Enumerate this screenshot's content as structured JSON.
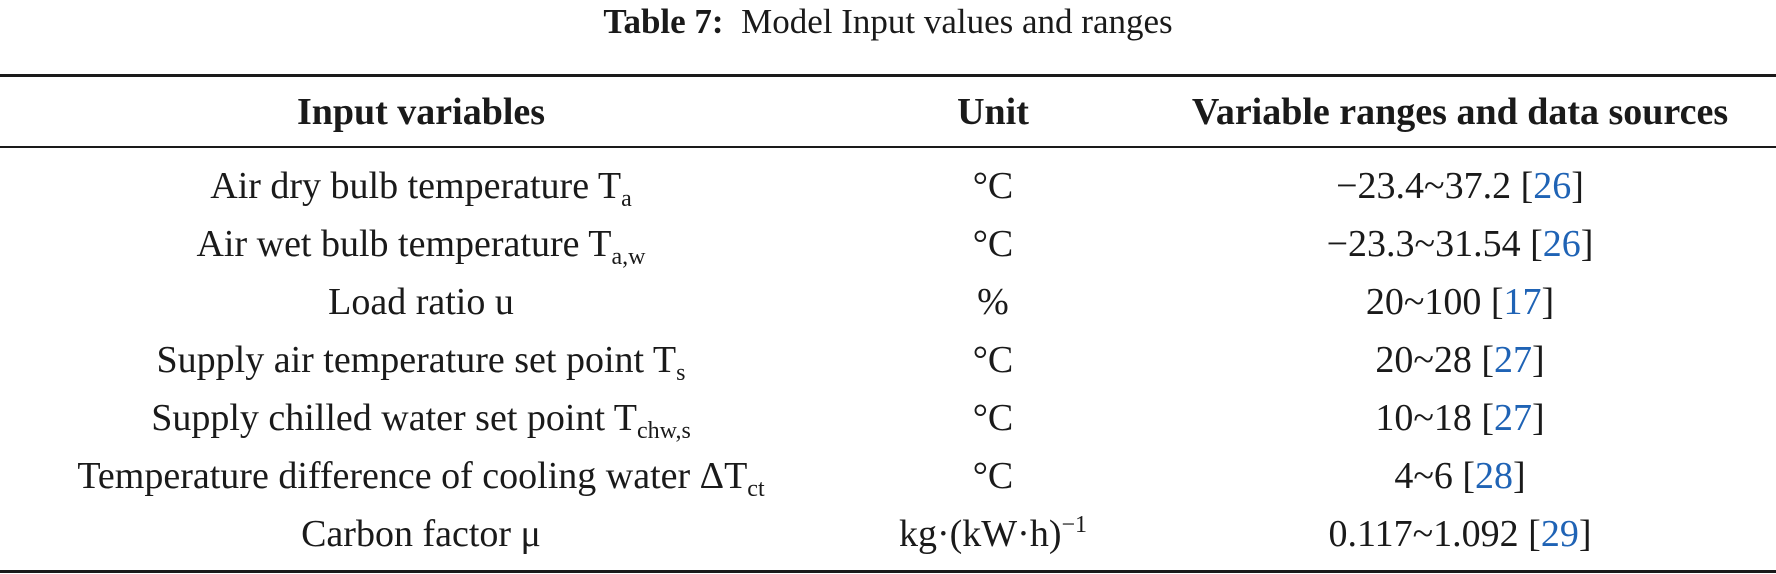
{
  "caption": {
    "label": "Table 7:",
    "text": "Model Input values and ranges"
  },
  "columns": [
    "Input variables",
    "Unit",
    "Variable ranges and data sources"
  ],
  "rows": [
    {
      "variable": "Air dry bulb temperature T",
      "sub": "a",
      "unit": "°C",
      "unit_sup": "",
      "range": "−23.4~37.2",
      "ref": "26"
    },
    {
      "variable": "Air wet bulb temperature T",
      "sub": "a,w",
      "unit": "°C",
      "unit_sup": "",
      "range": "−23.3~31.54",
      "ref": "26"
    },
    {
      "variable": "Load ratio u",
      "sub": "",
      "unit": "%",
      "unit_sup": "",
      "range": "20~100",
      "ref": "17"
    },
    {
      "variable": "Supply air temperature set point T",
      "sub": "s",
      "unit": "°C",
      "unit_sup": "",
      "range": "20~28",
      "ref": "27"
    },
    {
      "variable": "Supply chilled water set point T",
      "sub": "chw,s",
      "unit": "°C",
      "unit_sup": "",
      "range": "10~18",
      "ref": "27"
    },
    {
      "variable": "Temperature difference of cooling water ΔT",
      "sub": "ct",
      "unit": "°C",
      "unit_sup": "",
      "range": "4~6",
      "ref": "28"
    },
    {
      "variable": "Carbon factor μ",
      "sub": "",
      "unit": "kg·(kW·h)",
      "unit_sup": "−1",
      "range": "0.117~1.092",
      "ref": "29"
    }
  ]
}
